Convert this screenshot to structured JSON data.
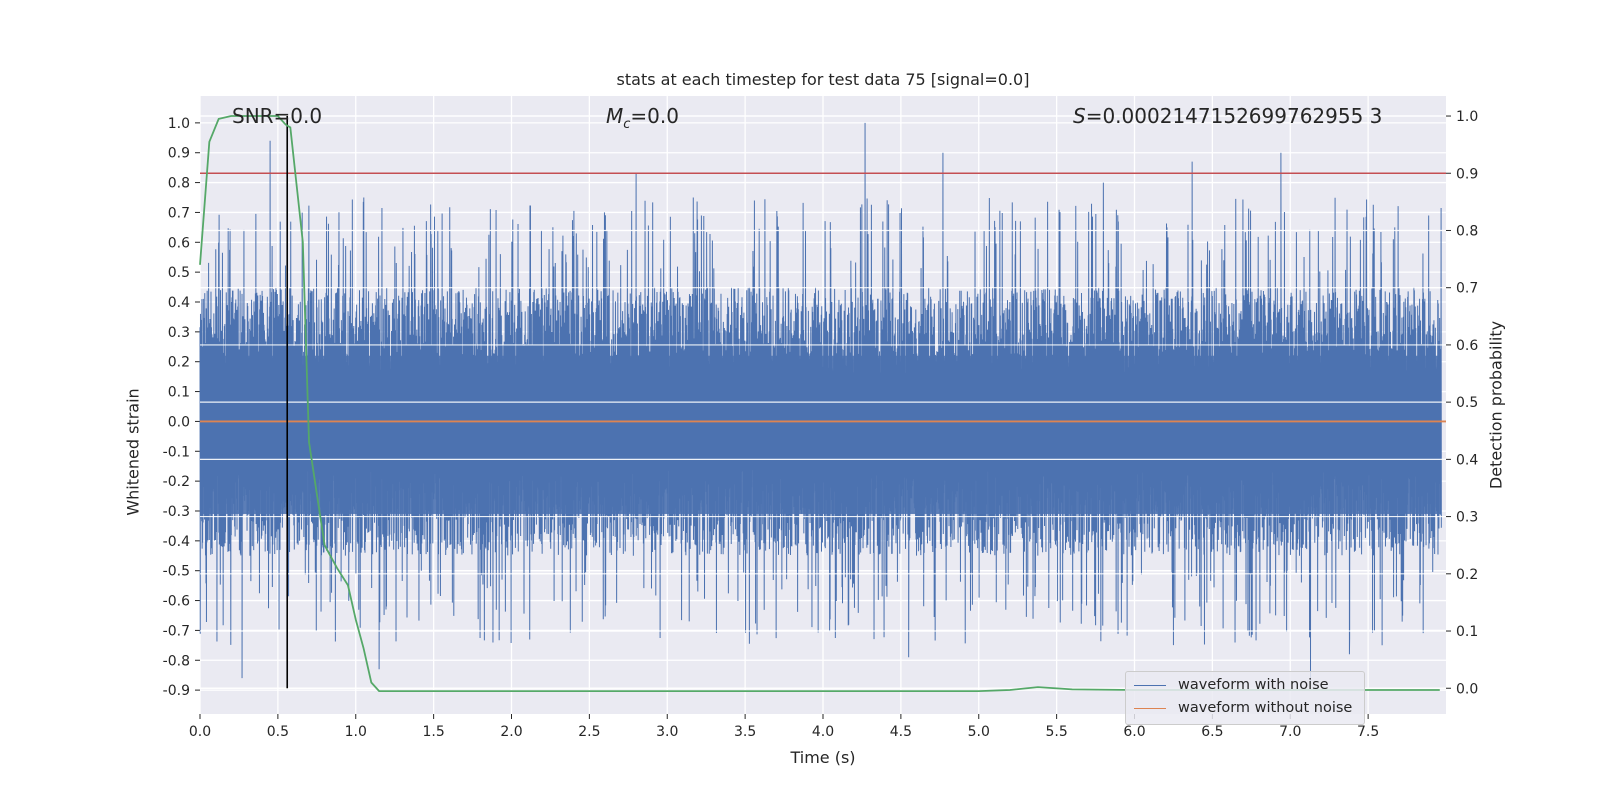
{
  "title": "stats at each timestep for test data 75 [signal=0.0]",
  "annotations": {
    "snr": "SNR=0.0",
    "mc": "Mc=0.0",
    "s": "S=0.0002147152699762955 3"
  },
  "chart_data": {
    "type": "line",
    "title": "stats at each timestep for test data 75 [signal=0.0]",
    "xlabel": "Time (s)",
    "ylabel_left": "Whitened strain",
    "ylabel_right": "Detection probability",
    "xlim": [
      0.0,
      8.0
    ],
    "ylim_left": [
      -0.98,
      1.09
    ],
    "ylim_right": [
      -0.045,
      1.035
    ],
    "xticks": [
      "0.0",
      "0.5",
      "1.0",
      "1.5",
      "2.0",
      "2.5",
      "3.0",
      "3.5",
      "4.0",
      "4.5",
      "5.0",
      "5.5",
      "6.0",
      "6.5",
      "7.0",
      "7.5"
    ],
    "yticks_left": [
      "1.0",
      "0.9",
      "0.8",
      "0.7",
      "0.6",
      "0.5",
      "0.4",
      "0.3",
      "0.2",
      "0.1",
      "0.0",
      "-0.1",
      "-0.2",
      "-0.3",
      "-0.4",
      "-0.5",
      "-0.6",
      "-0.7",
      "-0.8",
      "-0.9"
    ],
    "yticks_right": [
      "1.0",
      "0.9",
      "0.8",
      "0.7",
      "0.6",
      "0.5",
      "0.4",
      "0.3",
      "0.2",
      "0.1",
      "0.0"
    ],
    "grid": true,
    "legend_position": "lower-right",
    "series": [
      {
        "name": "waveform with noise",
        "axis": "left",
        "color": "#4c72b0",
        "style": "dense noise band",
        "typical_range": [
          -0.45,
          0.45
        ],
        "peaks": [
          {
            "x": 0.45,
            "y": 0.94
          },
          {
            "x": 2.8,
            "y": 0.83
          },
          {
            "x": 4.27,
            "y": 1.0
          },
          {
            "x": 4.77,
            "y": 0.9
          },
          {
            "x": 5.8,
            "y": 0.8
          },
          {
            "x": 6.37,
            "y": 0.87
          },
          {
            "x": 6.94,
            "y": 0.9
          },
          {
            "x": 7.13,
            "y": -0.88
          },
          {
            "x": 0.27,
            "y": -0.86
          },
          {
            "x": 1.15,
            "y": -0.83
          },
          {
            "x": 4.55,
            "y": -0.79
          },
          {
            "x": 7.38,
            "y": -0.78
          }
        ]
      },
      {
        "name": "waveform without noise",
        "axis": "left",
        "color": "#dd8452",
        "x": [
          0.0,
          8.0
        ],
        "y": [
          0.0,
          0.0
        ]
      },
      {
        "name": "detection probability",
        "axis": "right",
        "color": "#55a868",
        "x": [
          0.0,
          0.06,
          0.12,
          0.2,
          0.3,
          0.4,
          0.5,
          0.55,
          0.58,
          0.62,
          0.66,
          0.7,
          0.75,
          0.8,
          0.88,
          0.95,
          1.0,
          1.05,
          1.1,
          1.15,
          1.2,
          2.0,
          3.0,
          4.0,
          5.0,
          5.2,
          5.38,
          5.6,
          6.0,
          7.0,
          7.96
        ],
        "y": [
          0.74,
          0.955,
          0.995,
          1.0,
          1.0,
          1.0,
          1.0,
          0.985,
          0.98,
          0.88,
          0.78,
          0.43,
          0.34,
          0.25,
          0.21,
          0.18,
          0.12,
          0.07,
          0.01,
          -0.005,
          -0.005,
          -0.005,
          -0.005,
          -0.005,
          -0.005,
          -0.003,
          0.002,
          -0.002,
          -0.003,
          -0.003,
          -0.003
        ]
      }
    ],
    "hlines": [
      {
        "axis": "right",
        "y": 0.9,
        "color": "#c44e52"
      }
    ],
    "vlines": [
      {
        "x": 0.56,
        "y_range_right": [
          0.0,
          1.0
        ],
        "color": "#000000"
      }
    ]
  },
  "legend": {
    "items": [
      {
        "label": "waveform with noise",
        "color": "#4c72b0"
      },
      {
        "label": "waveform without noise",
        "color": "#dd8452"
      }
    ]
  }
}
